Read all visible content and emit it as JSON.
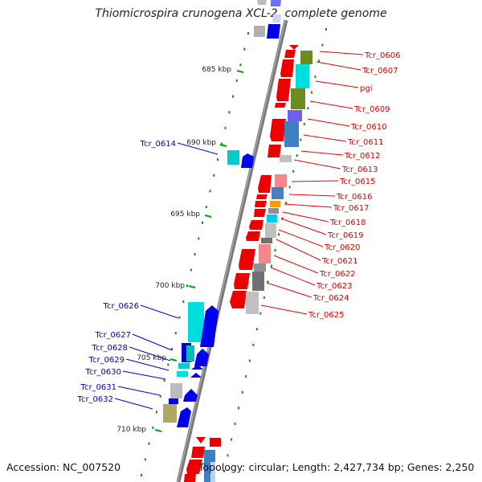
{
  "title": "Thiomicrospira crunogena XCL-2, complete genome",
  "accession": "Accession: NC_007520",
  "topology": "Topology: circular; Length: 2,427,734 bp; Genes: 2,250",
  "colors": {
    "forward_label": "#d40000",
    "reverse_label": "#0000b0",
    "backbone": "#808080"
  },
  "scale_labels": [
    "685 kbp",
    "690 kbp",
    "695 kbp",
    "700 kbp",
    "705 kbp",
    "710 kbp"
  ],
  "forward_genes": [
    "Tcr_0606",
    "Tcr_0607",
    "pgi",
    "Tcr_0609",
    "Tcr_0610",
    "Tcr_0611",
    "Tcr_0612",
    "Tcr_0613",
    "Tcr_0615",
    "Tcr_0616",
    "Tcr_0617",
    "Tcr_0618",
    "Tcr_0619",
    "Tcr_0620",
    "Tcr_0621",
    "Tcr_0622",
    "Tcr_0623",
    "Tcr_0624",
    "Tcr_0625"
  ],
  "reverse_genes": [
    "Tcr_0614",
    "Tcr_0626",
    "Tcr_0627",
    "Tcr_0628",
    "Tcr_0629",
    "Tcr_0630",
    "Tcr_0631",
    "Tcr_0632"
  ]
}
